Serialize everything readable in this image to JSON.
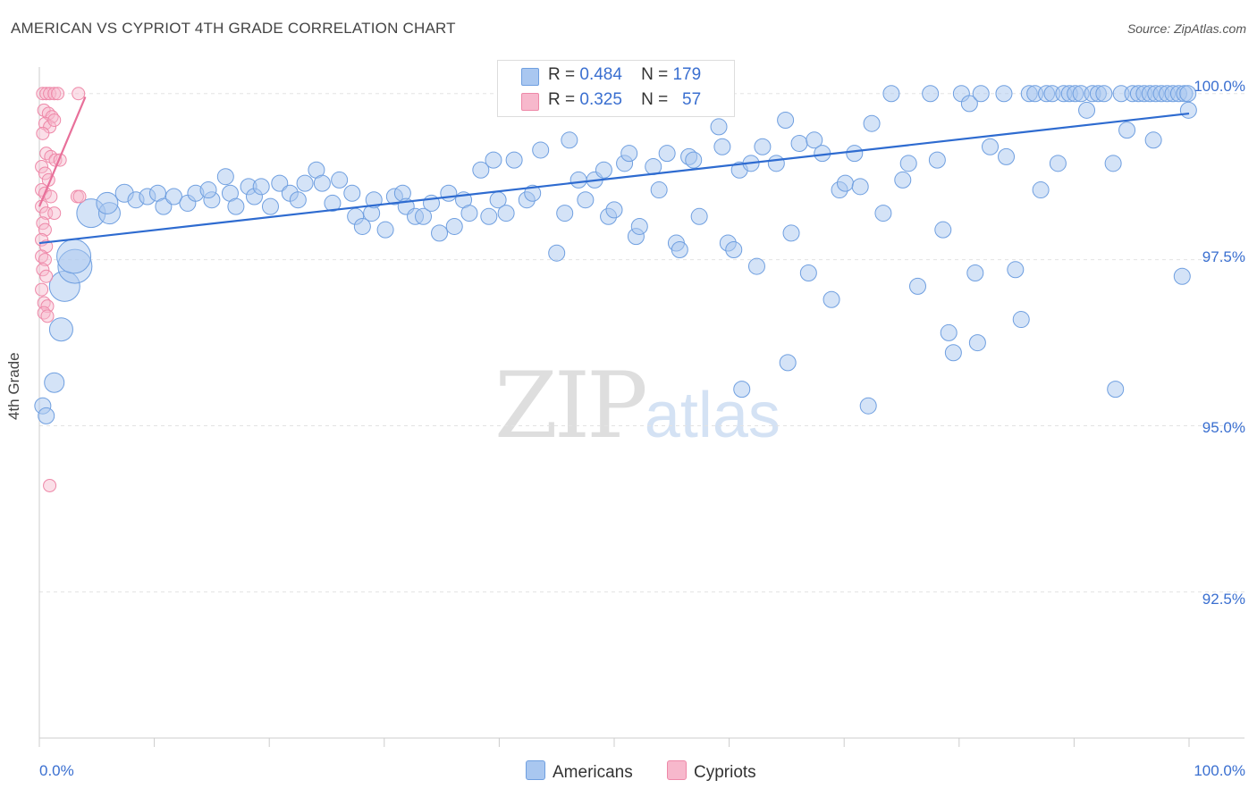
{
  "title": "AMERICAN VS CYPRIOT 4TH GRADE CORRELATION CHART",
  "source": "Source: ZipAtlas.com",
  "watermark": {
    "zip": "ZIP",
    "atlas": "atlas"
  },
  "legend_box": {
    "americans": {
      "r_label": "R =",
      "r_value": "0.484",
      "n_label": "N =",
      "n_value": "179"
    },
    "cypriots": {
      "r_label": "R =",
      "r_value": "0.325",
      "n_label": "N =",
      "n_value": "57"
    }
  },
  "bottom_legend": {
    "americans": "Americans",
    "cypriots": "Cypriots"
  },
  "colors": {
    "americans_fill": "#a9c7f0",
    "americans_stroke": "#6f9fe0",
    "americans_line": "#2e6bd0",
    "cypriots_fill": "#f7b8cc",
    "cypriots_stroke": "#ee88a8",
    "cypriots_line": "#e8709a",
    "tick_label": "#3a6fd0"
  },
  "chart_data": {
    "type": "scatter",
    "title": "AMERICAN VS CYPRIOT 4TH GRADE CORRELATION CHART",
    "ylabel": "4th Grade",
    "xlabel": "",
    "x_tick_labels": [
      "0.0%",
      "100.0%"
    ],
    "y_tick_labels": [
      "100.0%",
      "97.5%",
      "95.0%",
      "92.5%"
    ],
    "y_ticks": [
      100.0,
      97.5,
      95.0,
      92.5
    ],
    "xlim": [
      0,
      100
    ],
    "ylim": [
      90.3,
      100.4
    ],
    "grid": true,
    "legend_position": "top-center",
    "series": [
      {
        "name": "Americans",
        "R": 0.484,
        "N": 179,
        "trend": {
          "x": [
            0,
            100
          ],
          "y": [
            97.75,
            99.7
          ]
        },
        "points": [
          [
            0.3,
            95.3,
            9
          ],
          [
            0.6,
            95.15,
            9
          ],
          [
            1.3,
            95.65,
            11
          ],
          [
            1.9,
            96.45,
            13
          ],
          [
            2.2,
            97.1,
            17
          ],
          [
            3.1,
            97.4,
            19
          ],
          [
            3.0,
            97.55,
            19
          ],
          [
            4.5,
            98.2,
            16
          ],
          [
            6.1,
            98.2,
            12
          ],
          [
            5.9,
            98.35,
            12
          ],
          [
            7.4,
            98.5,
            10
          ],
          [
            8.4,
            98.4,
            9
          ],
          [
            9.4,
            98.45,
            9
          ],
          [
            10.3,
            98.5,
            9
          ],
          [
            10.8,
            98.3,
            9
          ],
          [
            11.7,
            98.45,
            9
          ],
          [
            12.9,
            98.35,
            9
          ],
          [
            13.6,
            98.5,
            9
          ],
          [
            15.0,
            98.4,
            9
          ],
          [
            14.7,
            98.55,
            9
          ],
          [
            16.2,
            98.75,
            9
          ],
          [
            16.6,
            98.5,
            9
          ],
          [
            17.1,
            98.3,
            9
          ],
          [
            18.2,
            98.6,
            9
          ],
          [
            18.7,
            98.45,
            9
          ],
          [
            19.3,
            98.6,
            9
          ],
          [
            20.1,
            98.3,
            9
          ],
          [
            20.9,
            98.65,
            9
          ],
          [
            21.8,
            98.5,
            9
          ],
          [
            22.5,
            98.4,
            9
          ],
          [
            23.1,
            98.65,
            9
          ],
          [
            24.1,
            98.85,
            9
          ],
          [
            24.6,
            98.65,
            9
          ],
          [
            25.5,
            98.35,
            9
          ],
          [
            26.1,
            98.7,
            9
          ],
          [
            27.2,
            98.5,
            9
          ],
          [
            27.5,
            98.15,
            9
          ],
          [
            28.1,
            98.0,
            9
          ],
          [
            28.9,
            98.2,
            9
          ],
          [
            29.1,
            98.4,
            9
          ],
          [
            30.1,
            97.95,
            9
          ],
          [
            30.9,
            98.45,
            9
          ],
          [
            31.6,
            98.5,
            9
          ],
          [
            31.9,
            98.3,
            9
          ],
          [
            32.7,
            98.15,
            9
          ],
          [
            33.4,
            98.15,
            9
          ],
          [
            34.1,
            98.35,
            9
          ],
          [
            34.8,
            97.9,
            9
          ],
          [
            35.6,
            98.5,
            9
          ],
          [
            36.1,
            98.0,
            9
          ],
          [
            36.9,
            98.4,
            9
          ],
          [
            37.4,
            98.2,
            9
          ],
          [
            38.4,
            98.85,
            9
          ],
          [
            39.1,
            98.15,
            9
          ],
          [
            39.5,
            99.0,
            9
          ],
          [
            39.9,
            98.4,
            9
          ],
          [
            40.6,
            98.2,
            9
          ],
          [
            41.3,
            99.0,
            9
          ],
          [
            42.4,
            98.4,
            9
          ],
          [
            42.9,
            98.5,
            9
          ],
          [
            43.6,
            99.15,
            9
          ],
          [
            45.0,
            97.6,
            9
          ],
          [
            45.7,
            98.2,
            9
          ],
          [
            46.1,
            99.3,
            9
          ],
          [
            46.9,
            98.7,
            9
          ],
          [
            47.5,
            98.4,
            9
          ],
          [
            48.3,
            98.7,
            9
          ],
          [
            49.1,
            98.85,
            9
          ],
          [
            49.5,
            98.15,
            9
          ],
          [
            50.0,
            98.25,
            9
          ],
          [
            50.9,
            98.95,
            9
          ],
          [
            51.3,
            99.1,
            9
          ],
          [
            51.9,
            97.85,
            9
          ],
          [
            52.2,
            98.0,
            9
          ],
          [
            53.4,
            98.9,
            9
          ],
          [
            53.9,
            98.55,
            9
          ],
          [
            54.6,
            99.1,
            9
          ],
          [
            55.4,
            97.75,
            9
          ],
          [
            55.7,
            97.65,
            9
          ],
          [
            56.5,
            99.05,
            9
          ],
          [
            56.9,
            99.0,
            9
          ],
          [
            57.4,
            98.15,
            9
          ],
          [
            59.1,
            99.5,
            9
          ],
          [
            59.4,
            99.2,
            9
          ],
          [
            59.9,
            97.75,
            9
          ],
          [
            60.4,
            97.65,
            9
          ],
          [
            60.9,
            98.85,
            9
          ],
          [
            61.1,
            95.55,
            9
          ],
          [
            61.9,
            98.95,
            9
          ],
          [
            62.4,
            97.4,
            9
          ],
          [
            62.9,
            99.2,
            9
          ],
          [
            64.1,
            98.95,
            9
          ],
          [
            64.9,
            99.6,
            9
          ],
          [
            65.1,
            95.95,
            9
          ],
          [
            65.4,
            97.9,
            9
          ],
          [
            66.1,
            99.25,
            9
          ],
          [
            66.9,
            97.3,
            9
          ],
          [
            67.4,
            99.3,
            9
          ],
          [
            68.1,
            99.1,
            9
          ],
          [
            68.9,
            96.9,
            9
          ],
          [
            69.6,
            98.55,
            9
          ],
          [
            70.1,
            98.65,
            9
          ],
          [
            70.9,
            99.1,
            9
          ],
          [
            71.4,
            98.6,
            9
          ],
          [
            72.1,
            95.3,
            9
          ],
          [
            72.4,
            99.55,
            9
          ],
          [
            73.4,
            98.2,
            9
          ],
          [
            74.1,
            100.0,
            9
          ],
          [
            75.1,
            98.7,
            9
          ],
          [
            75.6,
            98.95,
            9
          ],
          [
            76.4,
            97.1,
            9
          ],
          [
            77.5,
            100.0,
            9
          ],
          [
            78.1,
            99.0,
            9
          ],
          [
            78.6,
            97.95,
            9
          ],
          [
            79.1,
            96.4,
            9
          ],
          [
            79.5,
            96.1,
            9
          ],
          [
            80.2,
            100.0,
            9
          ],
          [
            80.9,
            99.85,
            9
          ],
          [
            81.4,
            97.3,
            9
          ],
          [
            81.6,
            96.25,
            9
          ],
          [
            81.9,
            100.0,
            9
          ],
          [
            82.7,
            99.2,
            9
          ],
          [
            83.9,
            100.0,
            9
          ],
          [
            84.1,
            99.05,
            9
          ],
          [
            84.9,
            97.35,
            9
          ],
          [
            85.4,
            96.6,
            9
          ],
          [
            86.1,
            100.0,
            9
          ],
          [
            86.6,
            100.0,
            9
          ],
          [
            87.1,
            98.55,
            9
          ],
          [
            87.6,
            100.0,
            9
          ],
          [
            88.1,
            100.0,
            9
          ],
          [
            88.6,
            98.95,
            9
          ],
          [
            89.1,
            100.0,
            9
          ],
          [
            89.6,
            100.0,
            9
          ],
          [
            90.1,
            100.0,
            9
          ],
          [
            90.6,
            100.0,
            9
          ],
          [
            91.1,
            99.75,
            9
          ],
          [
            91.6,
            100.0,
            9
          ],
          [
            92.1,
            100.0,
            9
          ],
          [
            92.6,
            100.0,
            9
          ],
          [
            93.4,
            98.95,
            9
          ],
          [
            93.6,
            95.55,
            9
          ],
          [
            94.1,
            100.0,
            9
          ],
          [
            94.6,
            99.45,
            9
          ],
          [
            95.1,
            100.0,
            9
          ],
          [
            95.6,
            100.0,
            9
          ],
          [
            96.1,
            100.0,
            9
          ],
          [
            96.6,
            100.0,
            9
          ],
          [
            96.9,
            99.3,
            9
          ],
          [
            97.1,
            100.0,
            9
          ],
          [
            97.6,
            100.0,
            9
          ],
          [
            98.1,
            100.0,
            9
          ],
          [
            98.6,
            100.0,
            9
          ],
          [
            99.1,
            100.0,
            9
          ],
          [
            99.4,
            97.25,
            9
          ],
          [
            99.6,
            100.0,
            9
          ],
          [
            99.9,
            100.0,
            9
          ],
          [
            99.95,
            99.75,
            9
          ]
        ]
      },
      {
        "name": "Cypriots",
        "R": 0.325,
        "N": 57,
        "trend": {
          "x": [
            0,
            4.0
          ],
          "y": [
            98.3,
            99.95
          ]
        },
        "points": [
          [
            0.3,
            100.0,
            7
          ],
          [
            0.6,
            100.0,
            7
          ],
          [
            0.9,
            100.0,
            7
          ],
          [
            1.3,
            100.0,
            7
          ],
          [
            1.6,
            100.0,
            7
          ],
          [
            3.4,
            100.0,
            7
          ],
          [
            0.4,
            99.75,
            7
          ],
          [
            0.8,
            99.7,
            7
          ],
          [
            1.1,
            99.65,
            7
          ],
          [
            0.5,
            99.55,
            7
          ],
          [
            0.9,
            99.5,
            7
          ],
          [
            1.3,
            99.6,
            7
          ],
          [
            0.3,
            99.4,
            7
          ],
          [
            0.6,
            99.1,
            7
          ],
          [
            1.0,
            99.05,
            7
          ],
          [
            1.4,
            99.0,
            7
          ],
          [
            1.8,
            99.0,
            7
          ],
          [
            0.2,
            98.9,
            7
          ],
          [
            0.5,
            98.8,
            7
          ],
          [
            0.8,
            98.7,
            7
          ],
          [
            0.2,
            98.55,
            7
          ],
          [
            0.5,
            98.5,
            7
          ],
          [
            1.0,
            98.45,
            7
          ],
          [
            3.3,
            98.45,
            7
          ],
          [
            3.5,
            98.45,
            7
          ],
          [
            0.2,
            98.3,
            7
          ],
          [
            0.6,
            98.2,
            7
          ],
          [
            1.3,
            98.2,
            7
          ],
          [
            0.3,
            98.05,
            7
          ],
          [
            0.5,
            97.95,
            7
          ],
          [
            0.2,
            97.8,
            7
          ],
          [
            0.6,
            97.7,
            7
          ],
          [
            0.2,
            97.55,
            7
          ],
          [
            0.5,
            97.5,
            7
          ],
          [
            0.3,
            97.35,
            7
          ],
          [
            0.6,
            97.25,
            7
          ],
          [
            0.2,
            97.05,
            7
          ],
          [
            0.4,
            96.85,
            7
          ],
          [
            0.7,
            96.8,
            7
          ],
          [
            0.4,
            96.7,
            7
          ],
          [
            0.7,
            96.65,
            7
          ],
          [
            0.9,
            94.1,
            7
          ]
        ]
      }
    ]
  }
}
